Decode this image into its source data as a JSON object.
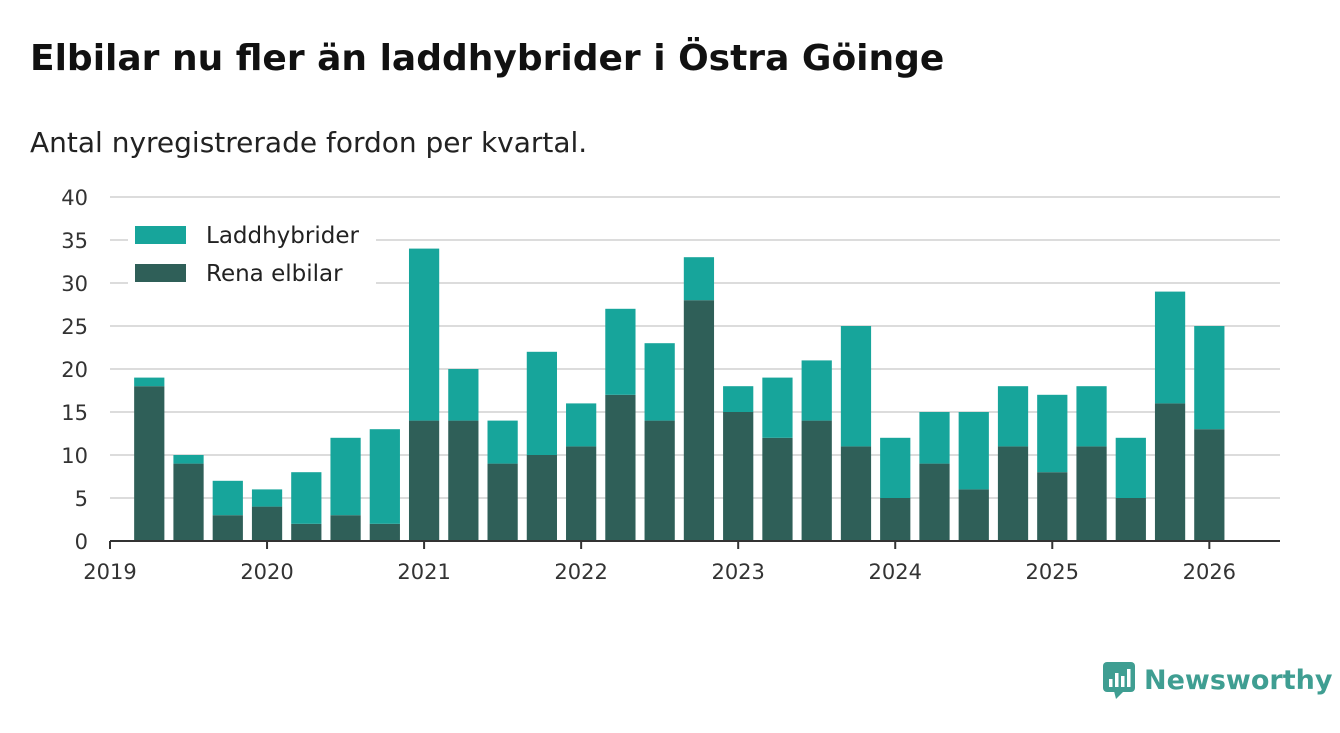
{
  "title": "Elbilar nu fler än laddhybrider i Östra Göinge",
  "subtitle": "Antal nyregistrerade fordon per kvartal.",
  "brand": {
    "name": "Newsworthy",
    "icon": "newsworthy-logo-icon"
  },
  "colors": {
    "hybrid": "#17a59b",
    "electric": "#2f5f58",
    "grid": "#dcdcdc",
    "axis": "#333333",
    "brand": "#3f9e92"
  },
  "chart_data": {
    "type": "bar",
    "stacked": true,
    "title": "Elbilar nu fler än laddhybrider i Östra Göinge",
    "subtitle": "Antal nyregistrerade fordon per kvartal.",
    "xlabel": "",
    "ylabel": "",
    "ylim": [
      0,
      40
    ],
    "yticks": [
      0,
      5,
      10,
      15,
      20,
      25,
      30,
      35,
      40
    ],
    "xlim": [
      2019.0,
      2026.45
    ],
    "x_tick_labels": [
      "2019",
      "2020",
      "2021",
      "2022",
      "2023",
      "2024",
      "2025",
      "2026"
    ],
    "x_tick_values": [
      2019,
      2020,
      2021,
      2022,
      2023,
      2024,
      2025,
      2026
    ],
    "legend": {
      "position": "top-left",
      "entries": [
        "Laddhybrider",
        "Rena elbilar"
      ]
    },
    "categories": [
      "2019 Q2",
      "2019 Q3",
      "2019 Q4",
      "2020 Q1",
      "2020 Q2",
      "2020 Q3",
      "2020 Q4",
      "2021 Q1",
      "2021 Q2",
      "2021 Q3",
      "2021 Q4",
      "2022 Q1",
      "2022 Q2",
      "2022 Q3",
      "2022 Q4",
      "2023 Q1",
      "2023 Q2",
      "2023 Q3",
      "2023 Q4",
      "2024 Q1",
      "2024 Q2",
      "2024 Q3",
      "2024 Q4",
      "2025 Q1",
      "2025 Q2",
      "2025 Q3",
      "2025 Q4",
      "2026 Q1"
    ],
    "x": [
      2019.25,
      2019.5,
      2019.75,
      2020.0,
      2020.25,
      2020.5,
      2020.75,
      2021.0,
      2021.25,
      2021.5,
      2021.75,
      2022.0,
      2022.25,
      2022.5,
      2022.75,
      2023.0,
      2023.25,
      2023.5,
      2023.75,
      2024.0,
      2024.25,
      2024.5,
      2024.75,
      2025.0,
      2025.25,
      2025.5,
      2025.75,
      2026.0
    ],
    "series": [
      {
        "name": "Rena elbilar",
        "values": [
          18,
          9,
          3,
          4,
          2,
          3,
          2,
          14,
          14,
          9,
          10,
          11,
          17,
          14,
          28,
          15,
          12,
          14,
          11,
          5,
          9,
          6,
          11,
          8,
          11,
          5,
          16,
          13
        ]
      },
      {
        "name": "Laddhybrider",
        "values": [
          1,
          1,
          4,
          2,
          6,
          9,
          11,
          20,
          6,
          5,
          12,
          5,
          10,
          9,
          5,
          3,
          7,
          7,
          14,
          7,
          6,
          9,
          7,
          9,
          7,
          7,
          13,
          12
        ]
      }
    ]
  }
}
